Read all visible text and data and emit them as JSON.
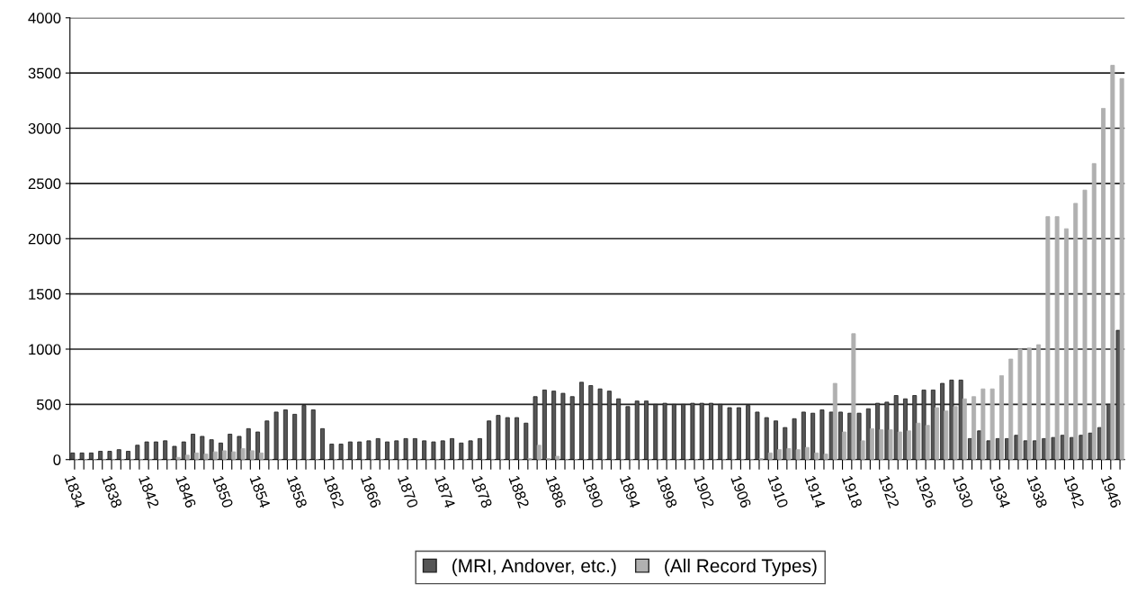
{
  "chart_data": {
    "type": "bar",
    "categories": [
      "1834",
      null,
      null,
      null,
      "1838",
      null,
      null,
      null,
      "1842",
      null,
      null,
      null,
      "1846",
      null,
      null,
      null,
      "1850",
      null,
      null,
      null,
      "1854",
      null,
      null,
      null,
      "1858",
      null,
      null,
      null,
      "1862",
      null,
      null,
      null,
      "1866",
      null,
      null,
      null,
      "1870",
      null,
      null,
      null,
      "1874",
      null,
      null,
      null,
      "1878",
      null,
      null,
      null,
      "1882",
      null,
      null,
      null,
      "1886",
      null,
      null,
      null,
      "1890",
      null,
      null,
      null,
      "1894",
      null,
      null,
      null,
      "1898",
      null,
      null,
      null,
      "1902",
      null,
      null,
      null,
      "1906",
      null,
      null,
      null,
      "1910",
      null,
      null,
      null,
      "1914",
      null,
      null,
      null,
      "1918",
      null,
      null,
      null,
      "1922",
      null,
      null,
      null,
      "1926",
      null,
      null,
      null,
      "1930",
      null,
      null,
      null,
      "1934",
      null,
      null,
      null,
      "1938",
      null,
      null,
      null,
      "1942",
      null,
      null,
      null,
      "1946",
      null
    ],
    "series": [
      {
        "name": "(MRI, Andover, etc.)",
        "color": "#555555",
        "values": [
          60,
          60,
          60,
          75,
          75,
          90,
          75,
          130,
          160,
          160,
          170,
          120,
          160,
          230,
          210,
          180,
          150,
          230,
          210,
          280,
          250,
          350,
          430,
          450,
          410,
          490,
          450,
          280,
          140,
          140,
          160,
          160,
          170,
          190,
          160,
          170,
          190,
          190,
          170,
          160,
          170,
          190,
          150,
          170,
          190,
          350,
          400,
          380,
          380,
          330,
          570,
          630,
          620,
          600,
          570,
          700,
          670,
          640,
          620,
          550,
          480,
          530,
          530,
          500,
          510,
          500,
          500,
          510,
          510,
          510,
          500,
          470,
          470,
          490,
          430,
          380,
          350,
          290,
          370,
          430,
          420,
          450,
          430,
          430,
          420,
          420,
          460,
          510,
          520,
          580,
          550,
          580,
          630,
          630,
          690,
          720,
          720,
          190,
          260,
          170,
          190,
          190,
          220,
          170,
          170,
          190,
          200,
          220,
          200,
          220,
          240,
          290,
          500,
          1170
        ]
      },
      {
        "name": "(All Record Types)",
        "color": "#b0b0b0",
        "values": [
          0,
          0,
          0,
          0,
          0,
          0,
          0,
          0,
          0,
          0,
          0,
          20,
          40,
          60,
          50,
          70,
          80,
          70,
          100,
          80,
          60,
          0,
          0,
          0,
          0,
          0,
          0,
          0,
          0,
          0,
          0,
          0,
          0,
          0,
          0,
          0,
          0,
          0,
          0,
          0,
          0,
          0,
          0,
          0,
          0,
          0,
          0,
          0,
          0,
          10,
          130,
          10,
          30,
          0,
          0,
          0,
          0,
          0,
          0,
          0,
          0,
          0,
          0,
          0,
          0,
          0,
          0,
          0,
          0,
          0,
          0,
          0,
          0,
          0,
          10,
          60,
          90,
          100,
          90,
          110,
          60,
          50,
          690,
          250,
          1140,
          170,
          280,
          270,
          270,
          250,
          260,
          330,
          310,
          470,
          440,
          480,
          550,
          570,
          640,
          640,
          760,
          910,
          1000,
          1010,
          1040,
          2200,
          2200,
          2090,
          2320,
          2440,
          2680,
          3180,
          3570,
          3450
        ]
      }
    ],
    "ylim": [
      0,
      4000
    ],
    "yticks": [
      0,
      500,
      1000,
      1500,
      2000,
      2500,
      3000,
      3500,
      4000
    ],
    "grid": "y",
    "legend": "bottom"
  }
}
